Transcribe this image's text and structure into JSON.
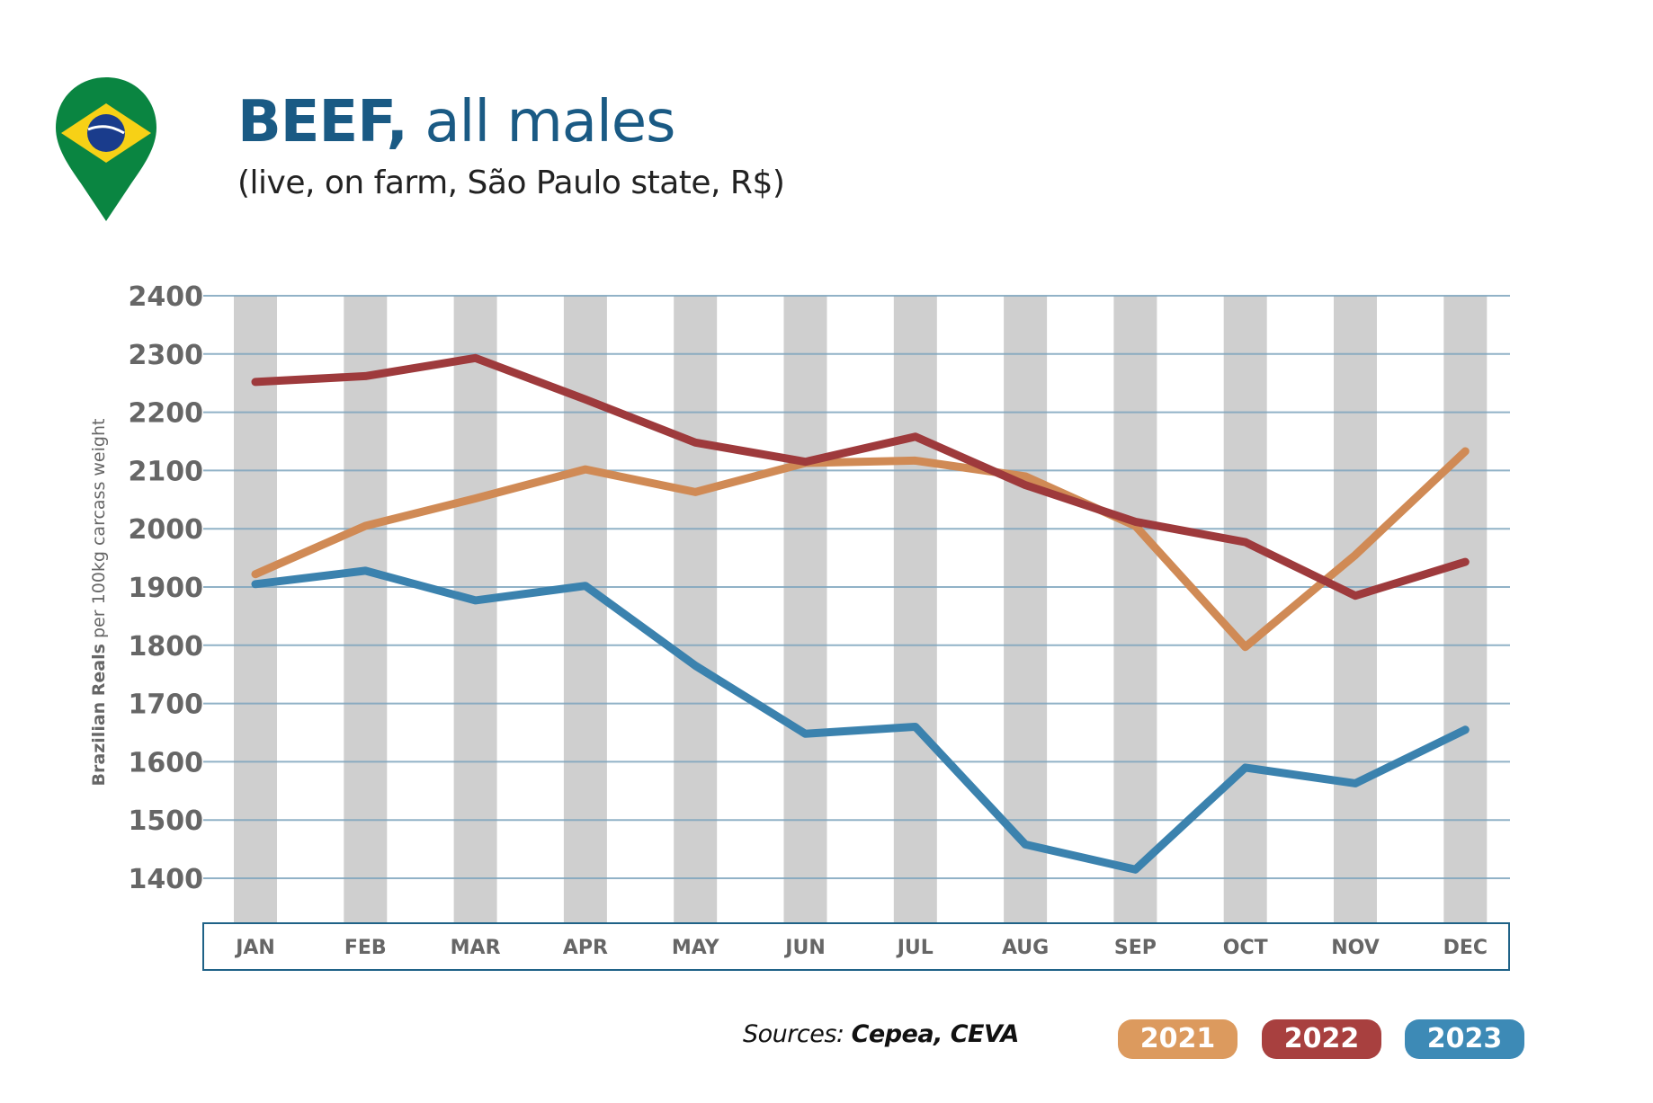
{
  "header": {
    "title_bold": "BEEF,",
    "title_rest": " all males",
    "subtitle": "(live, on farm, São Paulo state, R$)",
    "icon": "brazil-flag-map-pin-icon"
  },
  "footer": {
    "sources_prefix": "Sources: ",
    "sources_names": "Cepea, CEVA"
  },
  "colors": {
    "2021": "#d08a55",
    "2022": "#9e3a3c",
    "2023": "#3b82ae",
    "legend_2021": "#dc9a5e",
    "legend_2022": "#a8403f",
    "legend_2023": "#3d8ab6",
    "grid": "#7ea5be",
    "column_band": "#cfcfcf",
    "title": "#1a5a84"
  },
  "chart_data": {
    "type": "line",
    "title": "BEEF, all males",
    "subtitle": "(live, on farm, São Paulo state, R$)",
    "xlabel": "",
    "ylabel_bold": "Brazilian Reals",
    "ylabel_rest": " per 100kg carcass weight",
    "categories": [
      "JAN",
      "FEB",
      "MAR",
      "APR",
      "MAY",
      "JUN",
      "JUL",
      "AUG",
      "SEP",
      "OCT",
      "NOV",
      "DEC"
    ],
    "yticks": [
      2400,
      2300,
      2200,
      2100,
      2000,
      1900,
      1800,
      1700,
      1600,
      1500,
      1400
    ],
    "ylim": [
      1400,
      2400
    ],
    "grid": true,
    "legend_position": "bottom-right",
    "series": [
      {
        "name": "2021",
        "values": [
          1922,
          2005,
          2052,
          2102,
          2063,
          2113,
          2117,
          2090,
          2005,
          1797,
          1955,
          2133
        ]
      },
      {
        "name": "2022",
        "values": [
          2252,
          2262,
          2293,
          2222,
          2148,
          2115,
          2158,
          2075,
          2012,
          1977,
          1885,
          1943
        ]
      },
      {
        "name": "2023",
        "values": [
          1905,
          1928,
          1877,
          1902,
          1765,
          1648,
          1660,
          1458,
          1415,
          1590,
          1563,
          1655
        ]
      }
    ]
  }
}
